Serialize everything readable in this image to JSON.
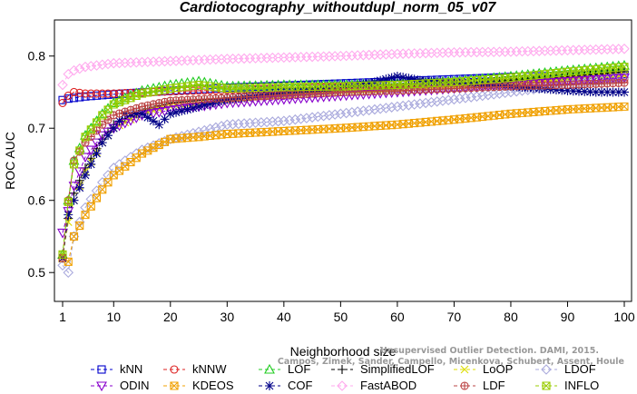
{
  "chart_data": {
    "type": "line",
    "title": "Cardiotocography_withoutdupl_norm_05_v07",
    "xlabel": "Neighborhood size",
    "ylabel": "ROC AUC",
    "xlim": [
      1,
      100
    ],
    "ylim": [
      0.46,
      0.85
    ],
    "xticks": [
      1,
      10,
      20,
      30,
      40,
      50,
      60,
      70,
      80,
      90,
      100
    ],
    "yticks": [
      0.5,
      0.6,
      0.7,
      0.8
    ],
    "grid": false,
    "legend_position": "bottom",
    "series": [
      {
        "name": "kNN",
        "color": "#0000cc",
        "marker": "square",
        "dash": "4,3",
        "points": [
          [
            1,
            0.739
          ],
          [
            2,
            0.741
          ],
          [
            3,
            0.742
          ],
          [
            5,
            0.744
          ],
          [
            10,
            0.747
          ],
          [
            20,
            0.752
          ],
          [
            30,
            0.756
          ],
          [
            40,
            0.759
          ],
          [
            50,
            0.762
          ],
          [
            60,
            0.765
          ],
          [
            70,
            0.768
          ],
          [
            80,
            0.771
          ],
          [
            90,
            0.773
          ],
          [
            100,
            0.775
          ]
        ]
      },
      {
        "name": "kNNW",
        "color": "#dd2222",
        "marker": "circle",
        "dash": "4,3",
        "points": [
          [
            1,
            0.735
          ],
          [
            2,
            0.745
          ],
          [
            3,
            0.75
          ],
          [
            5,
            0.748
          ],
          [
            10,
            0.748
          ],
          [
            20,
            0.751
          ],
          [
            30,
            0.753
          ],
          [
            40,
            0.755
          ],
          [
            50,
            0.757
          ],
          [
            60,
            0.76
          ],
          [
            70,
            0.762
          ],
          [
            80,
            0.764
          ],
          [
            90,
            0.766
          ],
          [
            100,
            0.768
          ]
        ]
      },
      {
        "name": "LOF",
        "color": "#22cc22",
        "marker": "triangle-up",
        "dash": "4,3",
        "points": [
          [
            1,
            0.525
          ],
          [
            2,
            0.6
          ],
          [
            3,
            0.655
          ],
          [
            5,
            0.69
          ],
          [
            8,
            0.72
          ],
          [
            10,
            0.735
          ],
          [
            15,
            0.752
          ],
          [
            20,
            0.76
          ],
          [
            25,
            0.765
          ],
          [
            30,
            0.758
          ],
          [
            40,
            0.76
          ],
          [
            50,
            0.76
          ],
          [
            60,
            0.762
          ],
          [
            70,
            0.765
          ],
          [
            80,
            0.772
          ],
          [
            90,
            0.78
          ],
          [
            100,
            0.787
          ]
        ]
      },
      {
        "name": "SimplifiedLOF",
        "color": "#000000",
        "marker": "plus",
        "dash": "4,3",
        "points": [
          [
            1,
            0.52
          ],
          [
            2,
            0.575
          ],
          [
            3,
            0.61
          ],
          [
            5,
            0.645
          ],
          [
            8,
            0.685
          ],
          [
            10,
            0.705
          ],
          [
            15,
            0.725
          ],
          [
            20,
            0.735
          ],
          [
            30,
            0.742
          ],
          [
            40,
            0.748
          ],
          [
            50,
            0.752
          ],
          [
            60,
            0.756
          ],
          [
            70,
            0.76
          ],
          [
            80,
            0.766
          ],
          [
            90,
            0.772
          ],
          [
            100,
            0.778
          ]
        ]
      },
      {
        "name": "LoOP",
        "color": "#dddd00",
        "marker": "x",
        "dash": "4,3",
        "points": [
          [
            1,
            0.52
          ],
          [
            2,
            0.57
          ],
          [
            3,
            0.6
          ],
          [
            5,
            0.64
          ],
          [
            8,
            0.68
          ],
          [
            10,
            0.7
          ],
          [
            15,
            0.72
          ],
          [
            20,
            0.73
          ],
          [
            30,
            0.738
          ],
          [
            40,
            0.745
          ],
          [
            50,
            0.75
          ],
          [
            60,
            0.753
          ],
          [
            70,
            0.757
          ],
          [
            80,
            0.762
          ],
          [
            90,
            0.768
          ],
          [
            100,
            0.773
          ]
        ]
      },
      {
        "name": "LDOF",
        "color": "#aaaadd",
        "marker": "diamond",
        "dash": "4,3",
        "points": [
          [
            1,
            0.51
          ],
          [
            2,
            0.5
          ],
          [
            3,
            0.55
          ],
          [
            5,
            0.59
          ],
          [
            8,
            0.625
          ],
          [
            10,
            0.645
          ],
          [
            15,
            0.67
          ],
          [
            20,
            0.685
          ],
          [
            25,
            0.695
          ],
          [
            30,
            0.705
          ],
          [
            40,
            0.71
          ],
          [
            50,
            0.72
          ],
          [
            60,
            0.73
          ],
          [
            70,
            0.74
          ],
          [
            80,
            0.75
          ],
          [
            90,
            0.76
          ],
          [
            100,
            0.77
          ]
        ]
      },
      {
        "name": "ODIN",
        "color": "#8800cc",
        "marker": "triangle-down",
        "dash": "4,3",
        "points": [
          [
            1,
            0.555
          ],
          [
            2,
            0.585
          ],
          [
            3,
            0.62
          ],
          [
            5,
            0.66
          ],
          [
            8,
            0.69
          ],
          [
            10,
            0.7
          ],
          [
            15,
            0.718
          ],
          [
            20,
            0.725
          ],
          [
            25,
            0.73
          ],
          [
            30,
            0.735
          ],
          [
            40,
            0.74
          ],
          [
            50,
            0.745
          ],
          [
            60,
            0.75
          ],
          [
            70,
            0.755
          ],
          [
            80,
            0.76
          ],
          [
            90,
            0.765
          ],
          [
            100,
            0.77
          ]
        ]
      },
      {
        "name": "KDEOS",
        "color": "#f0a000",
        "marker": "square-x",
        "dash": "4,3",
        "points": [
          [
            1,
            0.52
          ],
          [
            2,
            0.515
          ],
          [
            3,
            0.55
          ],
          [
            5,
            0.58
          ],
          [
            8,
            0.615
          ],
          [
            10,
            0.635
          ],
          [
            15,
            0.665
          ],
          [
            20,
            0.685
          ],
          [
            25,
            0.688
          ],
          [
            30,
            0.692
          ],
          [
            40,
            0.696
          ],
          [
            50,
            0.7
          ],
          [
            60,
            0.705
          ],
          [
            70,
            0.712
          ],
          [
            80,
            0.72
          ],
          [
            90,
            0.726
          ],
          [
            100,
            0.73
          ]
        ]
      },
      {
        "name": "COF",
        "color": "#000088",
        "marker": "asterisk",
        "dash": "4,3",
        "points": [
          [
            1,
            0.52
          ],
          [
            2,
            0.58
          ],
          [
            3,
            0.6
          ],
          [
            5,
            0.635
          ],
          [
            8,
            0.68
          ],
          [
            10,
            0.7
          ],
          [
            12,
            0.72
          ],
          [
            15,
            0.72
          ],
          [
            18,
            0.705
          ],
          [
            20,
            0.72
          ],
          [
            25,
            0.73
          ],
          [
            30,
            0.74
          ],
          [
            35,
            0.745
          ],
          [
            40,
            0.75
          ],
          [
            50,
            0.755
          ],
          [
            55,
            0.762
          ],
          [
            60,
            0.772
          ],
          [
            65,
            0.765
          ],
          [
            70,
            0.763
          ],
          [
            75,
            0.76
          ],
          [
            80,
            0.758
          ],
          [
            85,
            0.755
          ],
          [
            90,
            0.752
          ],
          [
            95,
            0.75
          ],
          [
            100,
            0.75
          ]
        ]
      },
      {
        "name": "FastABOD",
        "color": "#ffaaee",
        "marker": "diamond",
        "dash": "4,3",
        "points": [
          [
            1,
            0.76
          ],
          [
            2,
            0.775
          ],
          [
            3,
            0.78
          ],
          [
            5,
            0.785
          ],
          [
            10,
            0.79
          ],
          [
            20,
            0.793
          ],
          [
            30,
            0.796
          ],
          [
            40,
            0.798
          ],
          [
            50,
            0.8
          ],
          [
            60,
            0.803
          ],
          [
            70,
            0.805
          ],
          [
            80,
            0.806
          ],
          [
            90,
            0.808
          ],
          [
            100,
            0.81
          ]
        ]
      },
      {
        "name": "LDF",
        "color": "#bb4444",
        "marker": "circle-plus",
        "dash": "4,3",
        "points": [
          [
            1,
            0.52
          ],
          [
            2,
            0.6
          ],
          [
            3,
            0.655
          ],
          [
            5,
            0.68
          ],
          [
            8,
            0.705
          ],
          [
            10,
            0.718
          ],
          [
            15,
            0.73
          ],
          [
            20,
            0.738
          ],
          [
            30,
            0.742
          ],
          [
            40,
            0.746
          ],
          [
            50,
            0.75
          ],
          [
            60,
            0.752
          ],
          [
            70,
            0.755
          ],
          [
            80,
            0.758
          ],
          [
            90,
            0.76
          ],
          [
            100,
            0.763
          ]
        ]
      },
      {
        "name": "INFLO",
        "color": "#99cc00",
        "marker": "square-x",
        "dash": "4,3",
        "points": [
          [
            1,
            0.525
          ],
          [
            2,
            0.598
          ],
          [
            3,
            0.65
          ],
          [
            5,
            0.688
          ],
          [
            8,
            0.718
          ],
          [
            10,
            0.733
          ],
          [
            15,
            0.748
          ],
          [
            20,
            0.755
          ],
          [
            25,
            0.76
          ],
          [
            30,
            0.755
          ],
          [
            40,
            0.757
          ],
          [
            50,
            0.758
          ],
          [
            60,
            0.76
          ],
          [
            70,
            0.764
          ],
          [
            80,
            0.77
          ],
          [
            90,
            0.778
          ],
          [
            100,
            0.785
          ]
        ]
      }
    ]
  },
  "watermark": {
    "line1": "Unsupervised Outlier Detection. DAMI, 2015.",
    "line2": "Campos, Zimek, Sander, Campello, Micenkova, Schubert, Assent, Houle"
  }
}
